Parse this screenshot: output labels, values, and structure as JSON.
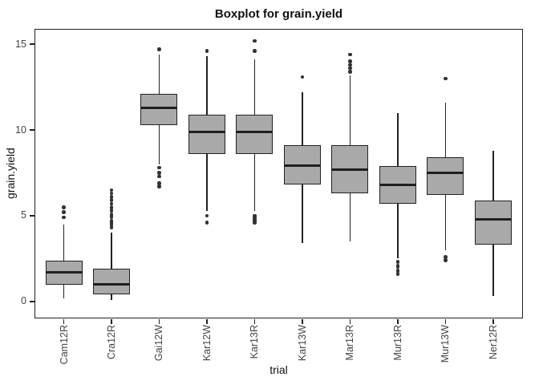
{
  "chart_data": {
    "type": "boxplot",
    "title": "Boxplot for grain.yield",
    "xlabel": "trial",
    "ylabel": "grain.yield",
    "y_ticks": [
      0,
      5,
      10,
      15
    ],
    "ylim": [
      -0.94,
      15.85
    ],
    "grid": "off",
    "legend": "none",
    "categories": [
      "Cam12R",
      "Cra12R",
      "Gai12W",
      "Kar12W",
      "Kar13R",
      "Kar13W",
      "Mar13R",
      "Mur13R",
      "Mur13W",
      "Ner12R"
    ],
    "series": [
      {
        "trial": "Cam12R",
        "whisker_low": 0.2,
        "q1": 1.0,
        "median": 1.7,
        "q3": 2.4,
        "whisker_high": 4.5,
        "outliers": [
          4.9,
          5.2,
          5.5
        ]
      },
      {
        "trial": "Cra12R",
        "whisker_low": 0.1,
        "q1": 0.4,
        "median": 1.0,
        "q3": 1.9,
        "whisker_high": 4.0,
        "outliers": [
          4.3,
          4.4,
          4.5,
          4.6,
          4.7,
          4.9,
          5.0,
          5.1,
          5.3,
          5.5,
          5.7,
          5.9,
          6.1,
          6.3,
          6.5
        ]
      },
      {
        "trial": "Gai12W",
        "whisker_low": 8.0,
        "q1": 10.3,
        "median": 11.3,
        "q3": 12.1,
        "whisker_high": 14.4,
        "outliers": [
          14.7,
          7.8,
          7.5,
          7.3,
          6.9,
          6.7
        ]
      },
      {
        "trial": "Kar12W",
        "whisker_low": 5.3,
        "q1": 8.6,
        "median": 9.9,
        "q3": 10.9,
        "whisker_high": 14.3,
        "outliers": [
          14.6,
          5.0,
          4.6
        ]
      },
      {
        "trial": "Kar13R",
        "whisker_low": 5.3,
        "q1": 8.6,
        "median": 9.9,
        "q3": 10.9,
        "whisker_high": 14.1,
        "outliers": [
          15.2,
          14.6,
          5.0,
          4.9,
          4.8,
          4.7,
          4.6
        ]
      },
      {
        "trial": "Kar13W",
        "whisker_low": 3.4,
        "q1": 6.8,
        "median": 7.9,
        "q3": 9.1,
        "whisker_high": 12.2,
        "outliers": [
          13.1
        ]
      },
      {
        "trial": "Mar13R",
        "whisker_low": 3.5,
        "q1": 6.3,
        "median": 7.7,
        "q3": 9.1,
        "whisker_high": 13.2,
        "outliers": [
          14.4,
          14.0,
          13.8,
          13.6,
          13.4
        ]
      },
      {
        "trial": "Mur13R",
        "whisker_low": 2.5,
        "q1": 5.7,
        "median": 6.8,
        "q3": 7.9,
        "whisker_high": 11.0,
        "outliers": [
          2.3,
          2.1,
          2.0,
          1.8,
          1.6
        ]
      },
      {
        "trial": "Mur13W",
        "whisker_low": 3.0,
        "q1": 6.2,
        "median": 7.5,
        "q3": 8.4,
        "whisker_high": 11.6,
        "outliers": [
          13.0,
          2.6,
          2.4
        ]
      },
      {
        "trial": "Ner12R",
        "whisker_low": 0.3,
        "q1": 3.3,
        "median": 4.8,
        "q3": 5.9,
        "whisker_high": 8.8,
        "outliers": []
      }
    ],
    "colors": {
      "box_fill": "#a9a9a9",
      "line": "#222222",
      "median": "#1f1f1f",
      "outlier": "#333333",
      "tick_text": "#444444",
      "text": "#111111",
      "background": "#ffffff"
    }
  }
}
